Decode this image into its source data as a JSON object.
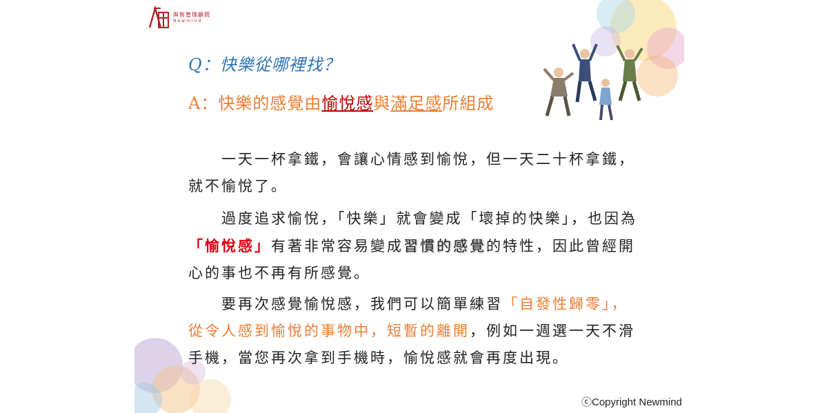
{
  "logo": {
    "name_cn": "與智管理顧問",
    "name_en": "Newmind"
  },
  "question": "Q：快樂從哪裡找？",
  "answer": {
    "prefix": "A：快樂的感覺由",
    "term1": "愉悅感",
    "mid": "與",
    "term2": "滿足感",
    "suffix": "所組成"
  },
  "paragraph1": "一天一杯拿鐵，會讓心情感到愉悅，但一天二十杯拿鐵，就不愉悅了。",
  "paragraph2": {
    "part1": "過度追求愉悅，「快樂」就會變成「壞掉的快樂」，也因為",
    "highlight": "「愉悅感」",
    "part2": "有著非常容易變成",
    "emphasis": "習慣的感覺",
    "part3": "的特性，因此曾經開心的事也不再有所感覺。"
  },
  "paragraph3": {
    "part1": "要再次感覺愉悅感，我們可以簡單練習",
    "highlight": "「自發性歸零」，從令人感到愉悅的事物中，短暫的離開",
    "part2": "，例如一週選一天不滑手機，當您再次拿到手機時，愉悅感就會再度出現。"
  },
  "copyright": "ⓒCopyright Newmind",
  "colors": {
    "question": "#2e74b5",
    "answer": "#ed7d31",
    "highlight_red": "#e0000f",
    "brand": "#b32025"
  },
  "icons": [
    "newmind-logo-icon",
    "jumping-people-illustration",
    "watercolor-splash-decoration"
  ]
}
